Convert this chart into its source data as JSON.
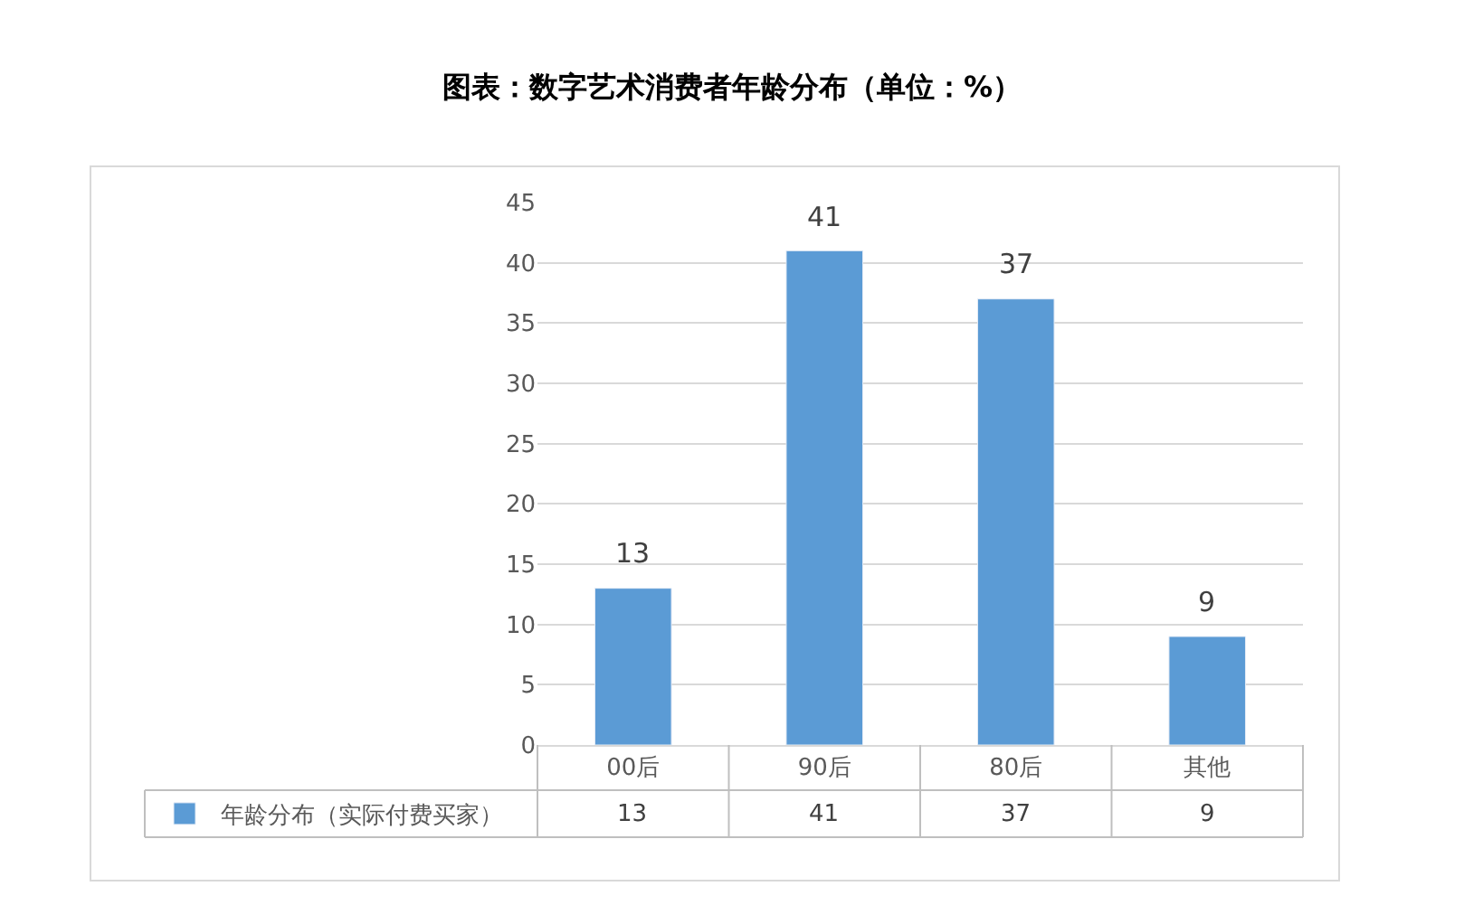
{
  "chart_data": {
    "type": "bar",
    "title": "图表：数字艺术消费者年龄分布（单位：%）",
    "categories": [
      "00后",
      "90后",
      "80后",
      "其他"
    ],
    "series": [
      {
        "name": "年龄分布（实际付费买家）",
        "color": "#5b9bd5",
        "values": [
          13,
          41,
          37,
          9
        ],
        "value_labels": [
          "13",
          "41",
          "37",
          "9"
        ]
      }
    ],
    "ylim": [
      0,
      45
    ],
    "yticks": [
      0,
      5,
      10,
      15,
      20,
      25,
      30,
      35,
      40,
      45
    ],
    "grid": "y",
    "data_labels": true,
    "annotations": [
      "13",
      "41",
      "37",
      "9"
    ],
    "legend": "bottom left"
  }
}
